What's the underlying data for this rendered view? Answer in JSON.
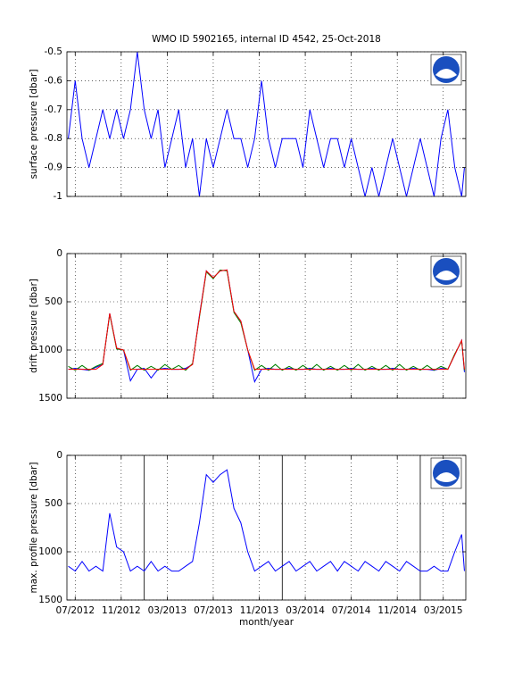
{
  "chart_data": [
    {
      "type": "line",
      "title": "WMO ID 5902165, internal ID 4542, 25-Oct-2018",
      "ylabel": "surface pressure [dbar]",
      "xlim": [
        2012.44,
        2015.33
      ],
      "ylim": [
        -1,
        -0.5
      ],
      "yticks": [
        -1,
        -0.9,
        -0.8,
        -0.7,
        -0.6,
        -0.5
      ],
      "grid": true,
      "x": [
        2012.45,
        2012.5,
        2012.55,
        2012.6,
        2012.65,
        2012.7,
        2012.75,
        2012.8,
        2012.85,
        2012.9,
        2012.95,
        2013.0,
        2013.05,
        2013.1,
        2013.15,
        2013.2,
        2013.25,
        2013.3,
        2013.35,
        2013.4,
        2013.45,
        2013.5,
        2013.55,
        2013.6,
        2013.65,
        2013.7,
        2013.75,
        2013.8,
        2013.85,
        2013.9,
        2013.95,
        2014.0,
        2014.05,
        2014.1,
        2014.15,
        2014.2,
        2014.25,
        2014.3,
        2014.35,
        2014.4,
        2014.45,
        2014.5,
        2014.55,
        2014.6,
        2014.65,
        2014.7,
        2014.75,
        2014.8,
        2014.85,
        2014.9,
        2014.95,
        2015.0,
        2015.05,
        2015.1,
        2015.15,
        2015.2,
        2015.25,
        2015.3,
        2015.32
      ],
      "series": [
        {
          "color": "#0000ff",
          "values": [
            -0.8,
            -0.6,
            -0.8,
            -0.9,
            -0.8,
            -0.7,
            -0.8,
            -0.7,
            -0.8,
            -0.7,
            -0.5,
            -0.7,
            -0.8,
            -0.7,
            -0.9,
            -0.8,
            -0.7,
            -0.9,
            -0.8,
            -1,
            -0.8,
            -0.9,
            -0.8,
            -0.7,
            -0.8,
            -0.8,
            -0.9,
            -0.8,
            -0.6,
            -0.8,
            -0.9,
            -0.8,
            -0.8,
            -0.8,
            -0.9,
            -0.7,
            -0.8,
            -0.9,
            -0.8,
            -0.8,
            -0.9,
            -0.8,
            -0.9,
            -1,
            -0.9,
            -1,
            -0.9,
            -0.8,
            -0.9,
            -1,
            -0.9,
            -0.8,
            -0.9,
            -1,
            -0.8,
            -0.7,
            -0.9,
            -1,
            -0.9
          ]
        }
      ]
    },
    {
      "type": "line",
      "ylabel": "drift pressure [dbar]",
      "xlim": [
        2012.44,
        2015.33
      ],
      "ylim": [
        1500,
        0
      ],
      "yticks": [
        0,
        500,
        1000,
        1500
      ],
      "grid": true,
      "x": [
        2012.45,
        2012.5,
        2012.55,
        2012.6,
        2012.65,
        2012.7,
        2012.75,
        2012.8,
        2012.85,
        2012.9,
        2012.95,
        2013.0,
        2013.05,
        2013.1,
        2013.15,
        2013.2,
        2013.25,
        2013.3,
        2013.35,
        2013.4,
        2013.45,
        2013.5,
        2013.55,
        2013.6,
        2013.65,
        2013.7,
        2013.75,
        2013.8,
        2013.85,
        2013.9,
        2013.95,
        2014.0,
        2014.05,
        2014.1,
        2014.15,
        2014.2,
        2014.25,
        2014.3,
        2014.35,
        2014.4,
        2014.45,
        2014.5,
        2014.55,
        2014.6,
        2014.65,
        2014.7,
        2014.75,
        2014.8,
        2014.85,
        2014.9,
        2014.95,
        2015.0,
        2015.05,
        2015.1,
        2015.15,
        2015.2,
        2015.25,
        2015.3,
        2015.32
      ],
      "series": [
        {
          "color": "#0000ff",
          "values": [
            1200,
            1190,
            1200,
            1210,
            1180,
            1150,
            620,
            980,
            1000,
            1320,
            1200,
            1190,
            1290,
            1200,
            1190,
            1200,
            1200,
            1190,
            1150,
            640,
            180,
            250,
            180,
            170,
            600,
            700,
            1000,
            1330,
            1200,
            1190,
            1200,
            1200,
            1190,
            1200,
            1200,
            1190,
            1200,
            1200,
            1190,
            1200,
            1200,
            1190,
            1200,
            1200,
            1190,
            1200,
            1200,
            1190,
            1200,
            1200,
            1190,
            1200,
            1200,
            1210,
            1190,
            1200,
            1050,
            900,
            1230
          ]
        },
        {
          "color": "#008000",
          "values": [
            1170,
            1210,
            1160,
            1210,
            1170,
            1140,
            630,
            990,
            1000,
            1210,
            1160,
            1210,
            1170,
            1210,
            1150,
            1200,
            1160,
            1210,
            1140,
            660,
            190,
            260,
            170,
            180,
            610,
            720,
            1000,
            1210,
            1160,
            1210,
            1150,
            1210,
            1170,
            1210,
            1160,
            1210,
            1150,
            1210,
            1170,
            1210,
            1160,
            1210,
            1150,
            1210,
            1170,
            1210,
            1160,
            1210,
            1150,
            1210,
            1170,
            1210,
            1160,
            1210,
            1170,
            1200,
            1040,
            910,
            1210
          ]
        },
        {
          "color": "#ff0000",
          "values": [
            1200,
            1200,
            1200,
            1200,
            1200,
            1150,
            620,
            980,
            1000,
            1200,
            1200,
            1200,
            1200,
            1200,
            1200,
            1200,
            1200,
            1200,
            1150,
            650,
            180,
            250,
            180,
            170,
            600,
            700,
            1000,
            1200,
            1200,
            1200,
            1200,
            1200,
            1200,
            1200,
            1200,
            1200,
            1200,
            1200,
            1200,
            1200,
            1200,
            1200,
            1200,
            1200,
            1200,
            1200,
            1200,
            1200,
            1200,
            1200,
            1200,
            1200,
            1200,
            1200,
            1200,
            1200,
            1050,
            900,
            1200
          ]
        }
      ]
    },
    {
      "type": "line",
      "ylabel": "max. profile pressure [dbar]",
      "xlabel": "month/year",
      "xlim": [
        2012.44,
        2015.33
      ],
      "ylim": [
        1500,
        0
      ],
      "yticks": [
        0,
        500,
        1000,
        1500
      ],
      "grid": true,
      "xticks": [
        {
          "value": 2012.5,
          "label": "07/2012"
        },
        {
          "value": 2012.8333,
          "label": "11/2012"
        },
        {
          "value": 2013.1667,
          "label": "03/2013"
        },
        {
          "value": 2013.5,
          "label": "07/2013"
        },
        {
          "value": 2013.8333,
          "label": "11/2013"
        },
        {
          "value": 2014.1667,
          "label": "03/2014"
        },
        {
          "value": 2014.5,
          "label": "07/2014"
        },
        {
          "value": 2014.8333,
          "label": "11/2014"
        },
        {
          "value": 2015.1667,
          "label": "03/2015"
        }
      ],
      "year_lines": [
        2013,
        2014,
        2015
      ],
      "x": [
        2012.45,
        2012.5,
        2012.55,
        2012.6,
        2012.65,
        2012.7,
        2012.75,
        2012.8,
        2012.85,
        2012.9,
        2012.95,
        2013.0,
        2013.05,
        2013.1,
        2013.15,
        2013.2,
        2013.25,
        2013.3,
        2013.35,
        2013.4,
        2013.45,
        2013.5,
        2013.55,
        2013.6,
        2013.65,
        2013.7,
        2013.75,
        2013.8,
        2013.85,
        2013.9,
        2013.95,
        2014.0,
        2014.05,
        2014.1,
        2014.15,
        2014.2,
        2014.25,
        2014.3,
        2014.35,
        2014.4,
        2014.45,
        2014.5,
        2014.55,
        2014.6,
        2014.65,
        2014.7,
        2014.75,
        2014.8,
        2014.85,
        2014.9,
        2014.95,
        2015.0,
        2015.05,
        2015.1,
        2015.15,
        2015.2,
        2015.25,
        2015.3,
        2015.32
      ],
      "series": [
        {
          "color": "#0000ff",
          "values": [
            1150,
            1200,
            1100,
            1200,
            1150,
            1200,
            600,
            950,
            1000,
            1200,
            1150,
            1200,
            1100,
            1200,
            1150,
            1200,
            1200,
            1150,
            1100,
            700,
            200,
            280,
            200,
            150,
            550,
            700,
            1000,
            1200,
            1150,
            1100,
            1200,
            1150,
            1100,
            1200,
            1150,
            1100,
            1200,
            1150,
            1100,
            1200,
            1100,
            1150,
            1200,
            1100,
            1150,
            1200,
            1100,
            1150,
            1200,
            1100,
            1150,
            1200,
            1200,
            1150,
            1200,
            1200,
            1000,
            820,
            1200
          ]
        }
      ]
    }
  ]
}
